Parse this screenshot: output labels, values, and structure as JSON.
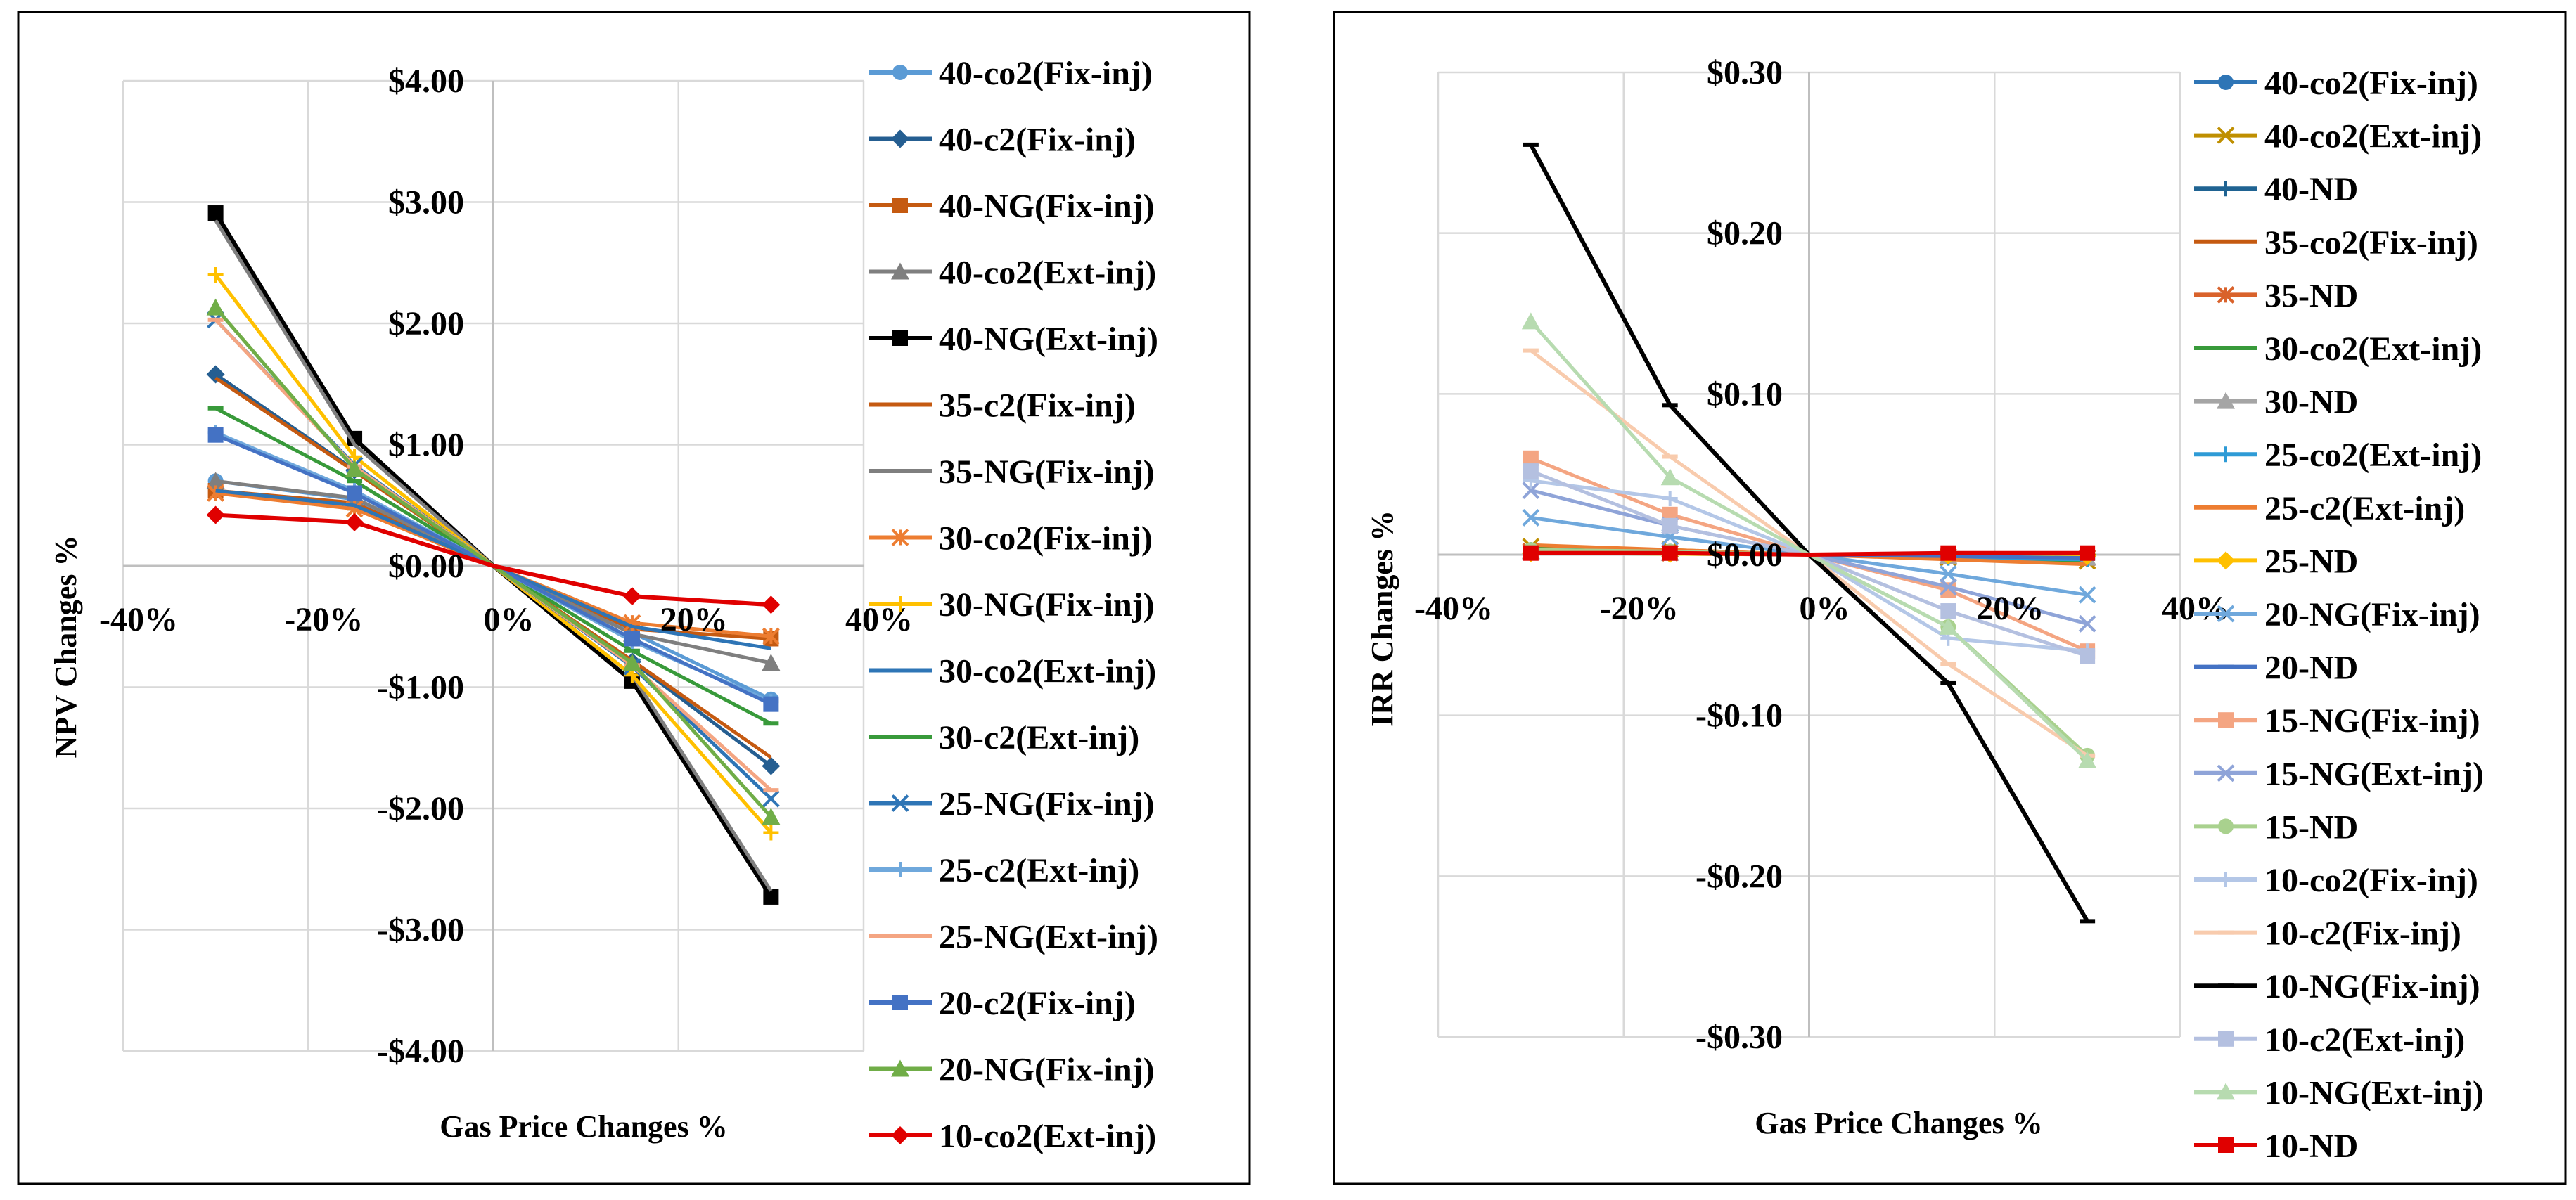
{
  "chart_data": [
    {
      "type": "line",
      "title": "",
      "xlabel": "Gas Price Changes %",
      "ylabel": "NPV Changes %",
      "x": [
        -30,
        -15,
        0,
        15,
        30
      ],
      "xlim": [
        -40,
        40
      ],
      "ylim": [
        -4,
        4
      ],
      "xticks": [
        -40,
        -20,
        0,
        20,
        40
      ],
      "xtick_labels": [
        "-40%",
        "-20%",
        "0%",
        "20%",
        "40%"
      ],
      "yticks": [
        4,
        3,
        2,
        1,
        0,
        -1,
        -2,
        -3,
        -4
      ],
      "ytick_labels": [
        "$4.00",
        "$3.00",
        "$2.00",
        "$1.00",
        "$0.00",
        "-$1.00",
        "-$2.00",
        "-$3.00",
        "-$4.00"
      ],
      "grid": true,
      "legend_position": "right",
      "series": [
        {
          "name": "40-co2(Fix-inj)",
          "color": "#5b9bd5",
          "marker": "circle",
          "values": [
            0.7,
            0.55,
            0,
            -0.55,
            -1.1
          ]
        },
        {
          "name": "40-c2(Fix-inj)",
          "color": "#255e91",
          "marker": "diamond",
          "values": [
            1.58,
            0.79,
            0,
            -0.79,
            -1.65
          ]
        },
        {
          "name": "40-NG(Fix-inj)",
          "color": "#c55a11",
          "marker": "square",
          "values": [
            0.62,
            0.52,
            0,
            -0.52,
            -0.6
          ]
        },
        {
          "name": "40-co2(Ext-inj)",
          "color": "#7f7f7f",
          "marker": "triangle",
          "values": [
            0.7,
            0.56,
            0,
            -0.56,
            -0.8
          ]
        },
        {
          "name": "40-NG(Ext-inj)",
          "color": "#000000",
          "marker": "square",
          "values": [
            2.91,
            1.05,
            0,
            -0.95,
            -2.73
          ]
        },
        {
          "name": "35-c2(Fix-inj)",
          "color": "#c55a11",
          "marker": "none",
          "values": [
            1.55,
            0.78,
            0,
            -0.78,
            -1.58
          ]
        },
        {
          "name": "35-NG(Fix-inj)",
          "color": "#7f7f7f",
          "marker": "none",
          "values": [
            2.85,
            1.0,
            0,
            -0.9,
            -2.68
          ]
        },
        {
          "name": "30-co2(Fix-inj)",
          "color": "#ed7d31",
          "marker": "star",
          "values": [
            0.6,
            0.47,
            0,
            -0.47,
            -0.58
          ]
        },
        {
          "name": "30-NG(Fix-inj)",
          "color": "#ffc000",
          "marker": "plus",
          "values": [
            2.4,
            0.9,
            0,
            -0.9,
            -2.2
          ]
        },
        {
          "name": "30-co2(Ext-inj)",
          "color": "#2e75b6",
          "marker": "none",
          "values": [
            0.62,
            0.5,
            0,
            -0.5,
            -0.68
          ]
        },
        {
          "name": "30-c2(Ext-inj)",
          "color": "#389a3a",
          "marker": "dash",
          "values": [
            1.3,
            0.7,
            0,
            -0.7,
            -1.3
          ]
        },
        {
          "name": "25-NG(Fix-inj)",
          "color": "#2e75b6",
          "marker": "x",
          "values": [
            2.03,
            0.83,
            0,
            -0.83,
            -1.92
          ]
        },
        {
          "name": "25-c2(Ext-inj)",
          "color": "#6fa8dc",
          "marker": "plus",
          "values": [
            1.1,
            0.62,
            0,
            -0.62,
            -1.12
          ]
        },
        {
          "name": "25-NG(Ext-inj)",
          "color": "#f4a582",
          "marker": "dash",
          "values": [
            2.03,
            0.82,
            0,
            -0.82,
            -1.85
          ]
        },
        {
          "name": "20-c2(Fix-inj)",
          "color": "#4472c4",
          "marker": "square",
          "values": [
            1.08,
            0.6,
            0,
            -0.6,
            -1.14
          ]
        },
        {
          "name": "20-NG(Fix-inj)",
          "color": "#70ad47",
          "marker": "triangle",
          "values": [
            2.13,
            0.8,
            0,
            -0.8,
            -2.07
          ]
        },
        {
          "name": "10-co2(Ext-inj)",
          "color": "#e00000",
          "marker": "diamond",
          "values": [
            0.42,
            0.36,
            0,
            -0.25,
            -0.32
          ]
        }
      ]
    },
    {
      "type": "line",
      "title": "",
      "xlabel": "Gas Price Changes %",
      "ylabel": "IRR Changes %",
      "x": [
        -30,
        -15,
        0,
        15,
        30
      ],
      "xlim": [
        -40,
        40
      ],
      "ylim": [
        -0.3,
        0.3
      ],
      "xticks": [
        -40,
        -20,
        0,
        20,
        40
      ],
      "xtick_labels": [
        "-40%",
        "-20%",
        "0%",
        "20%",
        "40%"
      ],
      "yticks": [
        0.3,
        0.2,
        0.1,
        0,
        -0.1,
        -0.2,
        -0.3
      ],
      "ytick_labels": [
        "$0.30",
        "$0.20",
        "$0.10",
        "$0.00",
        "-$0.10",
        "-$0.20",
        "-$0.30"
      ],
      "grid": true,
      "legend_position": "right",
      "series": [
        {
          "name": "40-co2(Fix-inj)",
          "color": "#2e75b6",
          "marker": "circle",
          "values": [
            0.002,
            0.001,
            0,
            -0.001,
            -0.002
          ]
        },
        {
          "name": "40-co2(Ext-inj)",
          "color": "#bf8f00",
          "marker": "x",
          "values": [
            0.005,
            0.003,
            0,
            -0.002,
            -0.004
          ]
        },
        {
          "name": "40-ND",
          "color": "#1f6392",
          "marker": "plus",
          "values": [
            0.001,
            0.0005,
            0,
            -0.0005,
            -0.001
          ]
        },
        {
          "name": "35-co2(Fix-inj)",
          "color": "#c55a11",
          "marker": "none",
          "values": [
            0.003,
            0.002,
            0,
            -0.002,
            -0.003
          ]
        },
        {
          "name": "35-ND",
          "color": "#d9622b",
          "marker": "star",
          "values": [
            0.002,
            0.001,
            0,
            -0.001,
            -0.002
          ]
        },
        {
          "name": "30-co2(Ext-inj)",
          "color": "#389a3a",
          "marker": "none",
          "values": [
            0.004,
            0.002,
            0,
            -0.002,
            -0.004
          ]
        },
        {
          "name": "30-ND",
          "color": "#a5a5a5",
          "marker": "triangle",
          "values": [
            0.002,
            0.001,
            0,
            -0.001,
            -0.002
          ]
        },
        {
          "name": "25-co2(Ext-inj)",
          "color": "#2e9bd6",
          "marker": "plus",
          "values": [
            0.003,
            0.002,
            0,
            -0.002,
            -0.003
          ]
        },
        {
          "name": "25-c2(Ext-inj)",
          "color": "#ed7d31",
          "marker": "none",
          "values": [
            0.006,
            0.003,
            0,
            -0.003,
            -0.006
          ]
        },
        {
          "name": "25-ND",
          "color": "#ffc000",
          "marker": "diamond",
          "values": [
            0.001,
            0.0005,
            0,
            -0.0005,
            -0.001
          ]
        },
        {
          "name": "20-NG(Fix-inj)",
          "color": "#6fa8dc",
          "marker": "x",
          "values": [
            0.023,
            0.011,
            0,
            -0.012,
            -0.025
          ]
        },
        {
          "name": "20-ND",
          "color": "#4472c4",
          "marker": "dash",
          "values": [
            0.002,
            0.001,
            0,
            -0.001,
            -0.002
          ]
        },
        {
          "name": "15-NG(Fix-inj)",
          "color": "#f4a582",
          "marker": "square",
          "values": [
            0.06,
            0.025,
            0,
            -0.022,
            -0.06
          ]
        },
        {
          "name": "15-NG(Ext-inj)",
          "color": "#8fa4d8",
          "marker": "x",
          "values": [
            0.04,
            0.018,
            0,
            -0.02,
            -0.043
          ]
        },
        {
          "name": "15-ND",
          "color": "#a9d18e",
          "marker": "circle",
          "values": [
            0.003,
            0.002,
            0,
            -0.045,
            -0.125
          ]
        },
        {
          "name": "10-co2(Fix-inj)",
          "color": "#b4c7e7",
          "marker": "plus",
          "values": [
            0.046,
            0.035,
            0,
            -0.052,
            -0.06
          ]
        },
        {
          "name": "10-c2(Fix-inj)",
          "color": "#f8cbad",
          "marker": "dash",
          "values": [
            0.127,
            0.061,
            0,
            -0.068,
            -0.125
          ]
        },
        {
          "name": "10-NG(Fix-inj)",
          "color": "#000000",
          "marker": "dash",
          "values": [
            0.255,
            0.093,
            0,
            -0.08,
            -0.228
          ]
        },
        {
          "name": "10-c2(Ext-inj)",
          "color": "#b4c0e0",
          "marker": "square",
          "values": [
            0.052,
            0.018,
            0,
            -0.035,
            -0.063
          ]
        },
        {
          "name": "10-NG(Ext-inj)",
          "color": "#b7dbb0",
          "marker": "triangle",
          "values": [
            0.145,
            0.048,
            0,
            -0.045,
            -0.128
          ]
        },
        {
          "name": "10-ND",
          "color": "#e00000",
          "marker": "square",
          "values": [
            0.001,
            0.001,
            0,
            0.001,
            0.001
          ]
        }
      ]
    }
  ]
}
